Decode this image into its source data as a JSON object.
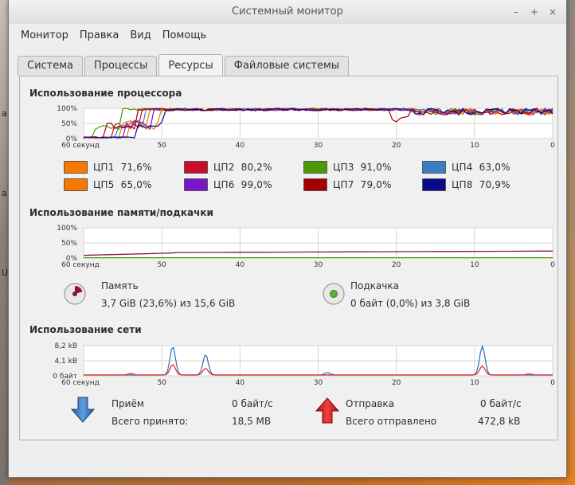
{
  "window": {
    "title": "Системный монитор"
  },
  "menu": [
    "Монитор",
    "Правка",
    "Вид",
    "Помощь"
  ],
  "tabs": [
    "Система",
    "Процессы",
    "Ресурсы",
    "Файловые системы"
  ],
  "active_tab": "Ресурсы",
  "cpu": {
    "title": "Использование процессора",
    "y_ticks": [
      "100%",
      "50%",
      "0%"
    ],
    "x_ticks": [
      "60 секунд",
      "50",
      "40",
      "30",
      "20",
      "10",
      "0"
    ],
    "cores": [
      {
        "label": "ЦП1",
        "value": "71,6%",
        "color": "#f57900"
      },
      {
        "label": "ЦП2",
        "value": "80,2%",
        "color": "#cc0d2a"
      },
      {
        "label": "ЦП3",
        "value": "91,0%",
        "color": "#4e9a06"
      },
      {
        "label": "ЦП4",
        "value": "63,0%",
        "color": "#3a7fc0"
      },
      {
        "label": "ЦП5",
        "value": "65,0%",
        "color": "#f57900"
      },
      {
        "label": "ЦП6",
        "value": "99,0%",
        "color": "#7a16c8"
      },
      {
        "label": "ЦП7",
        "value": "79,0%",
        "color": "#a40000"
      },
      {
        "label": "ЦП8",
        "value": "70,9%",
        "color": "#0a0a8a"
      }
    ]
  },
  "memory": {
    "title": "Использование памяти/подкачки",
    "y_ticks": [
      "100%",
      "50%",
      "0%"
    ],
    "x_ticks": [
      "60 секунд",
      "50",
      "40",
      "30",
      "20",
      "10",
      "0"
    ],
    "mem_label": "Память",
    "mem_value": "3,7 GiB (23,6%) из 15,6 GiB",
    "mem_color": "#8a1538",
    "swap_label": "Подкачка",
    "swap_value": "0 байт (0,0%) из 3,8 GiB",
    "swap_color": "#4e9a06"
  },
  "network": {
    "title": "Использование сети",
    "y_ticks": [
      "8,2 kB",
      "4,1 kB",
      "0 байт"
    ],
    "x_ticks": [
      "60 секунд",
      "50",
      "40",
      "30",
      "20",
      "10",
      "0"
    ],
    "recv_label": "Приём",
    "recv_rate": "0 байт/с",
    "recv_total_label": "Всего принято:",
    "recv_total": "18,5 MB",
    "recv_color": "#2f6db4",
    "send_label": "Отправка",
    "send_rate": "0 байт/с",
    "send_total_label": "Всего отправлено",
    "send_total": "472,8 kB",
    "send_color": "#e02020"
  },
  "colors": {
    "grid": "#d6d6d6",
    "axis": "#8a8a8a"
  }
}
